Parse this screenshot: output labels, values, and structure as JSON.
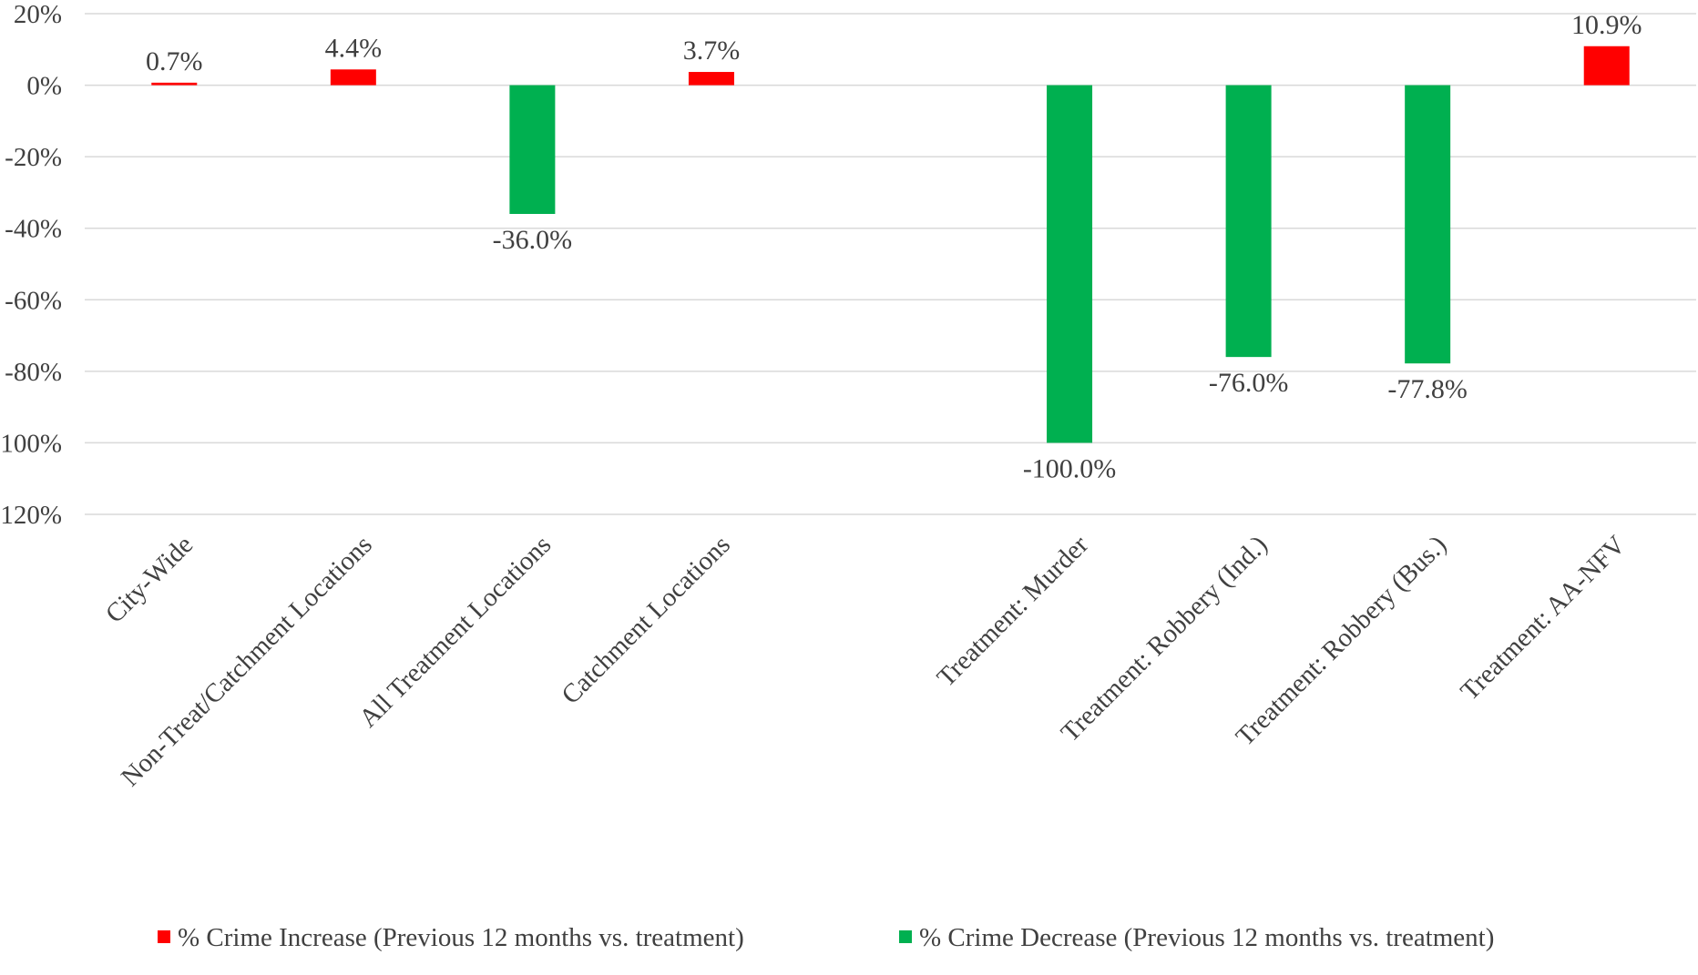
{
  "chart_data": {
    "type": "bar",
    "title": "",
    "xlabel": "",
    "ylabel": "",
    "ylim": [
      -120,
      20
    ],
    "y_tick_step": 20,
    "y_tick_format": "percent",
    "grid": "horizontal",
    "legend_position": "bottom",
    "categories": [
      "City-Wide",
      "Non-Treat/Catchment Locations",
      "All Treatment Locations",
      "Catchment Locations",
      "",
      "Treatment: Murder",
      "Treatment: Robbery (Ind.)",
      "Treatment: Robbery (Bus.)",
      "Treatment: AA-NFV"
    ],
    "series": [
      {
        "name": "% Crime Increase (Previous 12 months vs. treatment)",
        "color": "#ff0000",
        "values": [
          0.7,
          4.4,
          null,
          3.7,
          null,
          null,
          null,
          null,
          10.9
        ]
      },
      {
        "name": "% Crime Decrease (Previous 12 months vs. treatment)",
        "color": "#00b050",
        "values": [
          null,
          null,
          -36.0,
          null,
          null,
          -100.0,
          -76.0,
          -77.8,
          null
        ]
      }
    ],
    "data_labels": [
      "0.7%",
      "4.4%",
      "-36.0%",
      "3.7%",
      "",
      "-100.0%",
      "-76.0%",
      "-77.8%",
      "10.9%"
    ]
  }
}
